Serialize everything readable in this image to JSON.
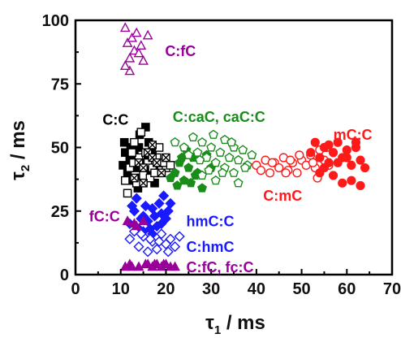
{
  "chart_data": {
    "type": "scatter",
    "xlabel_main": "τ",
    "xlabel_sub": "1",
    "xlabel_unit": " / ms",
    "ylabel_main": "τ",
    "ylabel_sub": "2",
    "ylabel_unit": " / ms",
    "xlim": [
      0,
      70
    ],
    "ylim": [
      0,
      100
    ],
    "xticks": [
      0,
      10,
      20,
      30,
      40,
      50,
      60,
      70
    ],
    "yticks": [
      0,
      25,
      50,
      75,
      100
    ],
    "colors": {
      "black": "#000000",
      "green": "#1a8c1a",
      "red": "#ff1a1a",
      "blue": "#1a1aff",
      "purple": "#990099"
    },
    "annotations": [
      {
        "text": "C:fC",
        "x": 19.8,
        "y": 86,
        "color": "purple"
      },
      {
        "text": "C:C",
        "x": 6,
        "y": 59,
        "color": "black"
      },
      {
        "text": "C:caC, caC:C",
        "x": 21.5,
        "y": 60,
        "color": "green"
      },
      {
        "text": "mC:C",
        "x": 57,
        "y": 53,
        "color": "red"
      },
      {
        "text": "C:mC",
        "x": 41.5,
        "y": 29,
        "color": "red"
      },
      {
        "text": "hmC:C",
        "x": 24.5,
        "y": 19,
        "color": "blue"
      },
      {
        "text": "fC:C",
        "x": 3,
        "y": 21,
        "color": "purple"
      },
      {
        "text": "C:hmC",
        "x": 24.5,
        "y": 9,
        "color": "blue"
      },
      {
        "text": "C:fC, fc:C",
        "x": 24.5,
        "y": 1,
        "color": "purple"
      }
    ],
    "series": [
      {
        "color": "black",
        "marker": "square",
        "filled": true,
        "points": [
          [
            10.5,
            43
          ],
          [
            11.5,
            40
          ],
          [
            12,
            45
          ],
          [
            13,
            47
          ],
          [
            13.5,
            42
          ],
          [
            14,
            50
          ],
          [
            14.5,
            38
          ],
          [
            15,
            44
          ],
          [
            15.5,
            58
          ],
          [
            16,
            46
          ],
          [
            16.5,
            41
          ],
          [
            17,
            49
          ],
          [
            17.5,
            36
          ],
          [
            18,
            43
          ],
          [
            11,
            48
          ],
          [
            12.5,
            37
          ],
          [
            14.2,
            55
          ],
          [
            16.2,
            52
          ],
          [
            10.8,
            52
          ],
          [
            18.5,
            40
          ],
          [
            13.8,
            34
          ],
          [
            15.2,
            40
          ],
          [
            12.2,
            50
          ]
        ]
      },
      {
        "color": "black",
        "marker": "square",
        "filled": false,
        "points": [
          [
            11,
            37
          ],
          [
            12,
            42
          ],
          [
            13,
            52
          ],
          [
            14,
            46
          ],
          [
            15,
            39
          ],
          [
            16,
            44
          ],
          [
            17,
            42
          ],
          [
            18,
            46
          ],
          [
            19,
            41
          ],
          [
            20,
            42
          ],
          [
            12.5,
            48
          ],
          [
            14.5,
            56
          ],
          [
            16.5,
            38
          ],
          [
            18.5,
            50
          ],
          [
            11.5,
            32
          ],
          [
            13.5,
            36
          ],
          [
            15.5,
            48
          ],
          [
            17.5,
            40
          ],
          [
            19.5,
            44
          ],
          [
            21,
            43
          ],
          [
            12.8,
            44
          ]
        ]
      },
      {
        "color": "black",
        "marker": "square-x",
        "filled": false,
        "points": [
          [
            13,
            38
          ],
          [
            14,
            44
          ],
          [
            15,
            42
          ],
          [
            16,
            48
          ],
          [
            17,
            46
          ],
          [
            18,
            44
          ],
          [
            19,
            40
          ],
          [
            20,
            46
          ],
          [
            15,
            36
          ],
          [
            17,
            51
          ]
        ]
      },
      {
        "color": "green",
        "marker": "pentagon",
        "filled": true,
        "points": [
          [
            21,
            38
          ],
          [
            22,
            40
          ],
          [
            23,
            44
          ],
          [
            24,
            37
          ],
          [
            25,
            42
          ],
          [
            26,
            46
          ],
          [
            27,
            40
          ],
          [
            28,
            34
          ],
          [
            22.5,
            35
          ],
          [
            24.5,
            49
          ],
          [
            26.5,
            39
          ],
          [
            29,
            47
          ],
          [
            30,
            42
          ],
          [
            23.5,
            46
          ],
          [
            25.5,
            36
          ]
        ]
      },
      {
        "color": "green",
        "marker": "pentagon",
        "filled": false,
        "points": [
          [
            22,
            52
          ],
          [
            24,
            50
          ],
          [
            25,
            47
          ],
          [
            26,
            54
          ],
          [
            27,
            48
          ],
          [
            28,
            52
          ],
          [
            29,
            46
          ],
          [
            30,
            50
          ],
          [
            31,
            44
          ],
          [
            32,
            48
          ],
          [
            33,
            42
          ],
          [
            34,
            46
          ],
          [
            35,
            40
          ],
          [
            36,
            45
          ],
          [
            37,
            49
          ],
          [
            38,
            43
          ],
          [
            39,
            47
          ],
          [
            28,
            39
          ],
          [
            31,
            37
          ],
          [
            33,
            53
          ],
          [
            35,
            50
          ],
          [
            36,
            36
          ],
          [
            27.5,
            45
          ],
          [
            30.5,
            55
          ],
          [
            32.5,
            40
          ],
          [
            34.5,
            52
          ],
          [
            37.5,
            42
          ],
          [
            29.5,
            41
          ]
        ]
      },
      {
        "color": "red",
        "marker": "circle",
        "filled": false,
        "points": [
          [
            40,
            43
          ],
          [
            41,
            41
          ],
          [
            42,
            45
          ],
          [
            43,
            40
          ],
          [
            44,
            44
          ],
          [
            45,
            42
          ],
          [
            46,
            46
          ],
          [
            47,
            41
          ],
          [
            48,
            44
          ],
          [
            49,
            40
          ],
          [
            50,
            45
          ],
          [
            51,
            43
          ],
          [
            52,
            47
          ],
          [
            53,
            42
          ],
          [
            54,
            49
          ],
          [
            55,
            45
          ],
          [
            56,
            43
          ],
          [
            43.5,
            44
          ],
          [
            46.5,
            40
          ],
          [
            49.5,
            47
          ],
          [
            52.5,
            44
          ],
          [
            55.5,
            50
          ],
          [
            47.5,
            45
          ],
          [
            53.5,
            38
          ]
        ]
      },
      {
        "color": "red",
        "marker": "circle",
        "filled": true,
        "points": [
          [
            52,
            48
          ],
          [
            53,
            52
          ],
          [
            54,
            46
          ],
          [
            55,
            50
          ],
          [
            56,
            44
          ],
          [
            57,
            48
          ],
          [
            58,
            52
          ],
          [
            59,
            46
          ],
          [
            60,
            49
          ],
          [
            61,
            43
          ],
          [
            62,
            50
          ],
          [
            63,
            45
          ],
          [
            64,
            42
          ],
          [
            54,
            40
          ],
          [
            57,
            39
          ],
          [
            59,
            36
          ],
          [
            61,
            37
          ],
          [
            63,
            35
          ],
          [
            58,
            44
          ],
          [
            62,
            52
          ],
          [
            56,
            51
          ],
          [
            60,
            46
          ],
          [
            55,
            42
          ]
        ]
      },
      {
        "color": "blue",
        "marker": "diamond",
        "filled": true,
        "points": [
          [
            12,
            20
          ],
          [
            13,
            25
          ],
          [
            14,
            18
          ],
          [
            15,
            23
          ],
          [
            16,
            21
          ],
          [
            17,
            26
          ],
          [
            18,
            19
          ],
          [
            19,
            24
          ],
          [
            20,
            22
          ],
          [
            21,
            28
          ],
          [
            13.5,
            30
          ],
          [
            15.5,
            27
          ],
          [
            17.5,
            23
          ],
          [
            19.5,
            31
          ],
          [
            14.5,
            22
          ],
          [
            16.5,
            18
          ],
          [
            18.5,
            28
          ],
          [
            12.5,
            27
          ],
          [
            20.5,
            25
          ],
          [
            15,
            17
          ],
          [
            17,
            16
          ],
          [
            19,
            20
          ]
        ]
      },
      {
        "color": "blue",
        "marker": "diamond",
        "filled": false,
        "points": [
          [
            12,
            14
          ],
          [
            13,
            17
          ],
          [
            14,
            11
          ],
          [
            15,
            15
          ],
          [
            16,
            9
          ],
          [
            17,
            13
          ],
          [
            18,
            10
          ],
          [
            19,
            16
          ],
          [
            20,
            12
          ],
          [
            21,
            14
          ],
          [
            22,
            11
          ],
          [
            23,
            15
          ],
          [
            14.5,
            16
          ],
          [
            16.5,
            14
          ],
          [
            18.5,
            13
          ],
          [
            20.5,
            9
          ]
        ]
      },
      {
        "color": "purple",
        "marker": "triangle",
        "filled": true,
        "points": [
          [
            11,
            3
          ],
          [
            11.5,
            21
          ],
          [
            12,
            4
          ],
          [
            13,
            20
          ],
          [
            14,
            3
          ],
          [
            15,
            21
          ],
          [
            16,
            4
          ],
          [
            17,
            3
          ],
          [
            18,
            4
          ],
          [
            19,
            3
          ],
          [
            20,
            4
          ],
          [
            21,
            3
          ],
          [
            22,
            3
          ],
          [
            12.5,
            3
          ],
          [
            15.5,
            4
          ],
          [
            17.5,
            4
          ],
          [
            19.5,
            4
          ],
          [
            13.5,
            19
          ]
        ]
      },
      {
        "color": "purple",
        "marker": "triangle",
        "filled": false,
        "points": [
          [
            11,
            97
          ],
          [
            11.5,
            91
          ],
          [
            12,
            85
          ],
          [
            12.5,
            93
          ],
          [
            13,
            88
          ],
          [
            13.5,
            95
          ],
          [
            14,
            87
          ],
          [
            14.5,
            90
          ],
          [
            15,
            84
          ],
          [
            16,
            94
          ],
          [
            12,
            80
          ],
          [
            11,
            82
          ]
        ]
      }
    ]
  }
}
